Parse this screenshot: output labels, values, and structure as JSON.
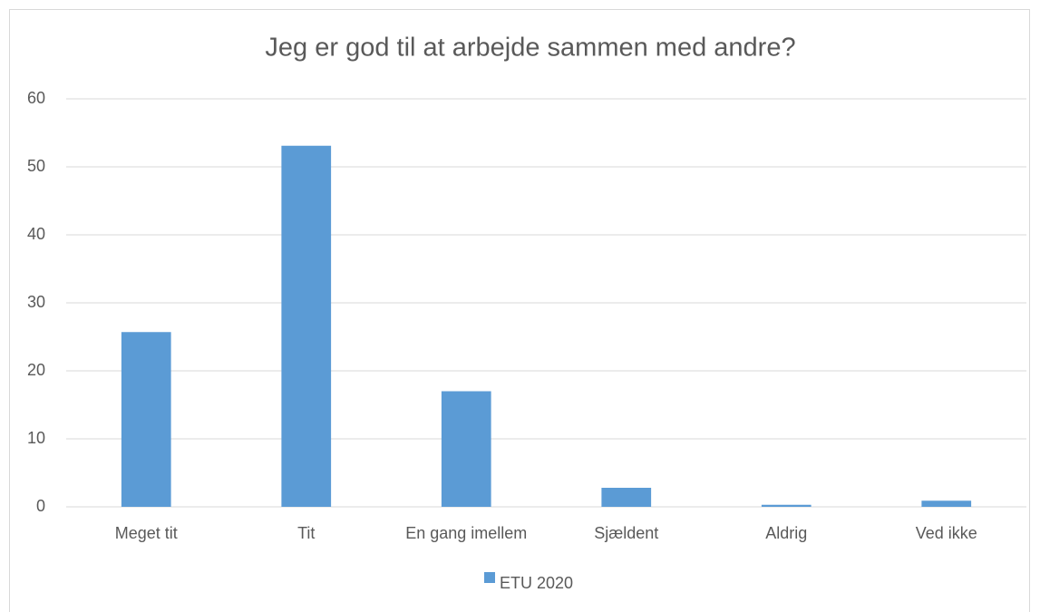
{
  "chart_data": {
    "type": "bar",
    "title": "Jeg er god til at arbejde sammen med andre?",
    "categories": [
      "Meget tit",
      "Tit",
      "En gang imellem",
      "Sjældent",
      "Aldrig",
      "Ved ikke"
    ],
    "series": [
      {
        "name": "ETU 2020",
        "color": "#5b9bd5",
        "values": [
          25.7,
          53.1,
          17,
          2.8,
          0.3,
          0.9
        ]
      }
    ],
    "ylim": [
      0,
      60
    ],
    "yticks": [
      0,
      10,
      20,
      30,
      40,
      50,
      60
    ],
    "grid": true,
    "legend": "bottom"
  }
}
